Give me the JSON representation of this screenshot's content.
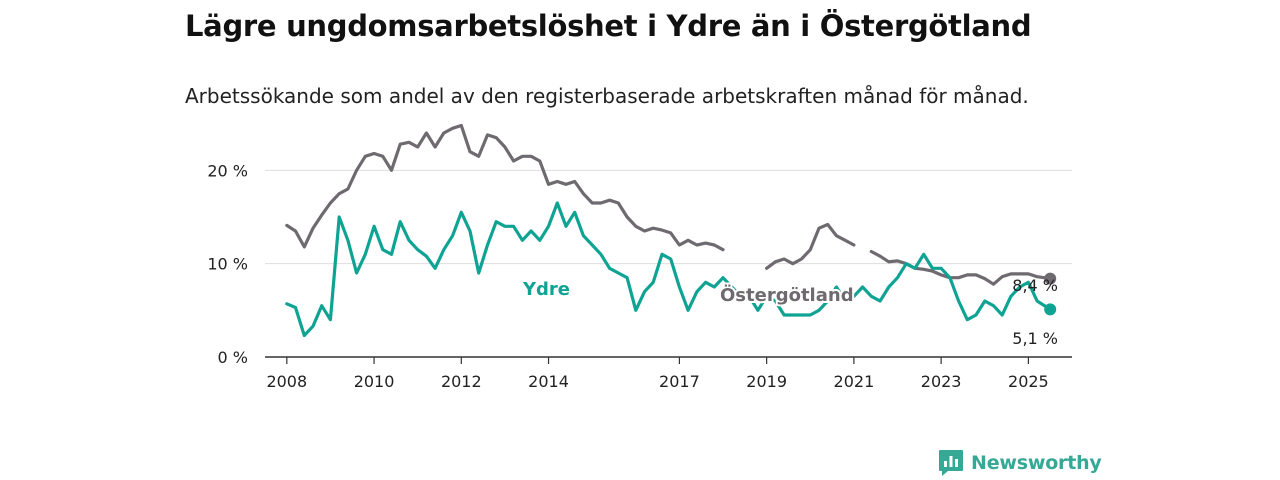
{
  "title": "Lägre ungdomsarbetslöshet i Ydre än i Östergötland",
  "subtitle": "Arbetssökande som andel av den registerbaserade arbetskraften månad för månad.",
  "brand": {
    "name": "Newsworthy",
    "logo_icon": "newsworthy-bar-chart-icon"
  },
  "colors": {
    "ydre": "#0fa393",
    "ostergotland": "#6e6a70",
    "grid": "#dedede",
    "axis": "#333333",
    "brand": "#35a896"
  },
  "chart_data": {
    "type": "line",
    "title": "Lägre ungdomsarbetslöshet i Ydre än i Östergötland",
    "subtitle": "Arbetssökande som andel av den registerbaserade arbetskraften månad för månad.",
    "x_axis": {
      "ticks": [
        2008,
        2010,
        2012,
        2014,
        2017,
        2019,
        2021,
        2023,
        2025
      ],
      "tick_labels": [
        "2008",
        "2010",
        "2012",
        "2014",
        "2017",
        "2019",
        "2021",
        "2023",
        "2025"
      ],
      "range": [
        2007.5,
        2026.0
      ]
    },
    "y_axis": {
      "ticks": [
        0,
        10,
        20
      ],
      "tick_labels": [
        "0 %",
        "10 %",
        "20 %"
      ],
      "range": [
        0,
        21
      ],
      "grid": true
    },
    "series": [
      {
        "name": "Östergötland",
        "color": "#6e6a70",
        "end_label": "8,4 %",
        "x": [
          2008.0,
          2008.2,
          2008.4,
          2008.6,
          2008.8,
          2009.0,
          2009.2,
          2009.4,
          2009.6,
          2009.8,
          2010.0,
          2010.2,
          2010.4,
          2010.6,
          2010.8,
          2011.0,
          2011.2,
          2011.4,
          2011.6,
          2011.8,
          2012.0,
          2012.2,
          2012.4,
          2012.6,
          2012.8,
          2013.0,
          2013.2,
          2013.4,
          2013.6,
          2013.8,
          2014.0,
          2014.2,
          2014.4,
          2014.6,
          2014.8,
          2015.0,
          2015.2,
          2015.4,
          2015.6,
          2015.8,
          2016.0,
          2016.2,
          2016.4,
          2016.6,
          2016.8,
          2017.0,
          2017.2,
          2017.4,
          2017.6,
          2017.8,
          2018.0,
          null,
          2019.0,
          2019.2,
          2019.4,
          2019.6,
          2019.8,
          2020.0,
          2020.2,
          2020.4,
          2020.6,
          2020.8,
          2021.0,
          null,
          2021.4,
          2021.6,
          2021.8,
          2022.0,
          2022.2,
          2022.4,
          2022.6,
          2022.8,
          2023.0,
          2023.2,
          2023.4,
          2023.6,
          2023.8,
          2024.0,
          2024.2,
          2024.4,
          2024.6,
          2024.8,
          2025.0,
          2025.2,
          2025.5
        ],
        "values": [
          14.1,
          13.5,
          11.8,
          13.8,
          15.2,
          16.5,
          17.5,
          18.0,
          20.0,
          21.5,
          21.8,
          21.5,
          20.0,
          22.8,
          23.0,
          22.5,
          24.0,
          22.5,
          24.0,
          24.5,
          24.8,
          22.0,
          21.5,
          23.8,
          23.5,
          22.5,
          21.0,
          21.5,
          21.5,
          21.0,
          18.5,
          18.8,
          18.5,
          18.8,
          17.5,
          16.5,
          16.5,
          16.8,
          16.5,
          15.0,
          14.0,
          13.5,
          13.8,
          13.6,
          13.3,
          12.0,
          12.5,
          12.0,
          12.2,
          12.0,
          11.5,
          null,
          9.5,
          10.2,
          10.5,
          10.0,
          10.5,
          11.5,
          13.8,
          14.2,
          13.0,
          12.5,
          12.0,
          null,
          11.3,
          10.8,
          10.2,
          10.3,
          10.0,
          9.5,
          9.4,
          9.2,
          8.8,
          8.5,
          8.5,
          8.8,
          8.8,
          8.4,
          7.8,
          8.6,
          8.9,
          8.9,
          8.9,
          8.6,
          8.4
        ]
      },
      {
        "name": "Ydre",
        "color": "#0fa393",
        "end_label": "5,1 %",
        "x": [
          2008.0,
          2008.2,
          2008.4,
          2008.6,
          2008.8,
          2009.0,
          2009.2,
          2009.4,
          2009.6,
          2009.8,
          2010.0,
          2010.2,
          2010.4,
          2010.6,
          2010.8,
          2011.0,
          2011.2,
          2011.4,
          2011.6,
          2011.8,
          2012.0,
          2012.2,
          2012.4,
          2012.6,
          2012.8,
          2013.0,
          2013.2,
          2013.4,
          2013.6,
          2013.8,
          2014.0,
          2014.2,
          2014.4,
          2014.6,
          2014.8,
          2015.0,
          2015.2,
          2015.4,
          2015.6,
          2015.8,
          2016.0,
          2016.2,
          2016.4,
          2016.6,
          2016.8,
          2017.0,
          2017.2,
          2017.4,
          2017.6,
          2017.8,
          2018.0,
          2018.2,
          2018.4,
          2018.6,
          2018.8,
          2019.0,
          2019.2,
          2019.4,
          2019.6,
          2019.8,
          2020.0,
          2020.2,
          2020.4,
          2020.6,
          2020.8,
          2021.0,
          2021.2,
          2021.4,
          2021.6,
          2021.8,
          2022.0,
          2022.2,
          2022.4,
          2022.6,
          2022.8,
          2023.0,
          2023.2,
          2023.4,
          2023.6,
          2023.8,
          2024.0,
          2024.2,
          2024.4,
          2024.6,
          2024.8,
          2025.0,
          2025.2,
          2025.5
        ],
        "values": [
          5.7,
          5.3,
          2.3,
          3.3,
          5.5,
          4.0,
          15.0,
          12.5,
          9.0,
          11.0,
          14.0,
          11.5,
          11.0,
          14.5,
          12.5,
          11.5,
          10.8,
          9.5,
          11.5,
          13.0,
          15.5,
          13.5,
          9.0,
          12.0,
          14.5,
          14.0,
          14.0,
          12.5,
          13.5,
          12.5,
          14.0,
          16.5,
          14.0,
          15.5,
          13.0,
          12.0,
          11.0,
          9.5,
          9.0,
          8.5,
          5.0,
          7.0,
          8.0,
          11.0,
          10.5,
          7.5,
          5.0,
          7.0,
          8.0,
          7.5,
          8.5,
          7.5,
          6.5,
          6.5,
          5.0,
          6.5,
          6.0,
          4.5,
          4.5,
          4.5,
          4.5,
          5.0,
          6.0,
          7.5,
          6.0,
          6.5,
          7.5,
          6.5,
          6.0,
          7.5,
          8.5,
          10.0,
          9.5,
          11.0,
          9.5,
          9.5,
          8.5,
          6.0,
          4.0,
          4.5,
          6.0,
          5.5,
          4.5,
          6.5,
          7.5,
          8.0,
          6.0,
          5.1
        ]
      }
    ],
    "annotations": [
      {
        "text": "Ydre",
        "series": "Ydre"
      },
      {
        "text": "Östergötland",
        "series": "Östergötland"
      }
    ]
  }
}
